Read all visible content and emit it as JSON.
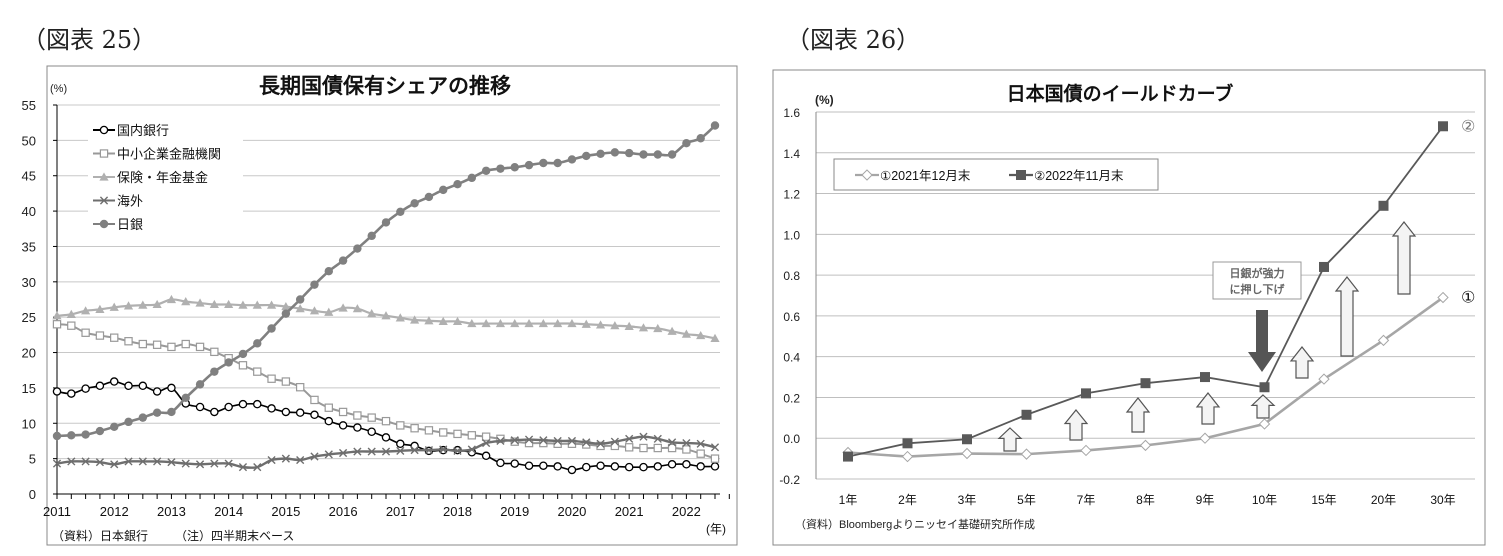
{
  "figure_labels": {
    "left": "（図表 25）",
    "right": "（図表 26）"
  },
  "chart_data": [
    {
      "type": "line",
      "title": "長期国債保有シェアの推移",
      "ylabel": "(%)",
      "xlabel": "(年)",
      "ylim": [
        0,
        55
      ],
      "yticks": [
        0,
        5,
        10,
        15,
        20,
        25,
        30,
        35,
        40,
        45,
        50,
        55
      ],
      "x_tick_labels": [
        "2011",
        "2012",
        "2013",
        "2014",
        "2015",
        "2016",
        "2017",
        "2018",
        "2019",
        "2020",
        "2021",
        "2022"
      ],
      "x_frequency": "quarterly",
      "grid": true,
      "legend": "top-left",
      "source": "（資料）日本銀行",
      "note": "（注）四半期末ベース",
      "series": [
        {
          "name": "国内銀行",
          "color": "#000000",
          "marker": "circle-open",
          "values": [
            14.5,
            14.2,
            14.9,
            15.3,
            15.9,
            15.3,
            15.3,
            14.5,
            15.0,
            12.8,
            12.3,
            11.6,
            12.3,
            12.7,
            12.7,
            12.1,
            11.6,
            11.5,
            11.2,
            10.3,
            9.7,
            9.4,
            8.8,
            8.0,
            7.1,
            6.8,
            6.1,
            6.2,
            6.2,
            5.9,
            5.4,
            4.4,
            4.3,
            4.0,
            4.0,
            3.9,
            3.4,
            3.8,
            4.0,
            3.9,
            3.8,
            3.8,
            3.9,
            4.2,
            4.2,
            3.9,
            3.9
          ]
        },
        {
          "name": "中小企業金融機関",
          "color": "#999999",
          "marker": "square-open",
          "values": [
            24.0,
            23.8,
            22.8,
            22.4,
            22.1,
            21.6,
            21.2,
            21.1,
            20.8,
            21.2,
            20.8,
            20.1,
            19.2,
            18.2,
            17.3,
            16.3,
            15.9,
            15.1,
            13.3,
            12.2,
            11.6,
            11.1,
            10.8,
            10.3,
            9.7,
            9.3,
            9.0,
            8.7,
            8.5,
            8.3,
            8.1,
            7.8,
            7.4,
            7.2,
            7.2,
            7.1,
            7.1,
            7.0,
            6.8,
            6.8,
            6.6,
            6.5,
            6.5,
            6.5,
            6.3,
            5.7,
            5.0
          ]
        },
        {
          "name": "保険・年金基金",
          "color": "#b0b0b0",
          "marker": "triangle",
          "values": [
            25.2,
            25.4,
            25.9,
            26.1,
            26.4,
            26.6,
            26.7,
            26.8,
            27.5,
            27.2,
            27.0,
            26.8,
            26.8,
            26.7,
            26.7,
            26.7,
            26.5,
            26.2,
            25.9,
            25.7,
            26.3,
            26.2,
            25.5,
            25.2,
            24.9,
            24.6,
            24.5,
            24.4,
            24.4,
            24.1,
            24.1,
            24.1,
            24.1,
            24.1,
            24.1,
            24.1,
            24.1,
            24.0,
            23.9,
            23.8,
            23.7,
            23.5,
            23.4,
            23.0,
            22.6,
            22.4,
            22.0
          ]
        },
        {
          "name": "海外",
          "color": "#6e6e6e",
          "marker": "x",
          "values": [
            4.3,
            4.6,
            4.6,
            4.5,
            4.2,
            4.6,
            4.6,
            4.6,
            4.5,
            4.3,
            4.2,
            4.3,
            4.3,
            3.8,
            3.8,
            4.8,
            5.0,
            4.8,
            5.3,
            5.6,
            5.8,
            6.0,
            6.0,
            6.0,
            6.1,
            6.2,
            6.2,
            6.3,
            6.1,
            6.3,
            7.2,
            7.5,
            7.6,
            7.7,
            7.6,
            7.5,
            7.5,
            7.3,
            7.1,
            7.4,
            7.8,
            8.1,
            7.8,
            7.3,
            7.2,
            7.1,
            6.6
          ]
        },
        {
          "name": "日銀",
          "color": "#808080",
          "marker": "circle-filled",
          "values": [
            8.2,
            8.3,
            8.4,
            8.9,
            9.5,
            10.2,
            10.8,
            11.5,
            11.6,
            13.6,
            15.5,
            17.3,
            18.6,
            19.8,
            21.3,
            23.4,
            25.5,
            27.5,
            29.6,
            31.5,
            33.0,
            34.7,
            36.5,
            38.4,
            39.9,
            41.1,
            42.0,
            43.0,
            43.8,
            44.7,
            45.7,
            46.0,
            46.2,
            46.5,
            46.8,
            46.8,
            47.3,
            47.8,
            48.1,
            48.3,
            48.2,
            48.0,
            48.0,
            48.0,
            49.6,
            50.3,
            52.1
          ]
        }
      ]
    },
    {
      "type": "line",
      "title": "日本国債のイールドカーブ",
      "ylabel": "(%)",
      "ylim": [
        -0.2,
        1.6
      ],
      "yticks": [
        "-0.2",
        "0.0",
        "0.2",
        "0.4",
        "0.6",
        "0.8",
        "1.0",
        "1.2",
        "1.4",
        "1.6"
      ],
      "categories": [
        "1年",
        "2年",
        "3年",
        "5年",
        "7年",
        "8年",
        "9年",
        "10年",
        "15年",
        "20年",
        "30年"
      ],
      "grid": true,
      "legend": "top-left",
      "source": "（資料）Bloombergよりニッセイ基礎研究所作成",
      "annotation": "日銀が強力に押し下げ",
      "annotation_lines": [
        "日銀が強力",
        "に押し下げ"
      ],
      "series": [
        {
          "name": "①2021年12月末",
          "end_label": "①",
          "color": "#a6a6a6",
          "marker": "diamond-open",
          "values": [
            -0.07,
            -0.09,
            -0.075,
            -0.078,
            -0.06,
            -0.035,
            0.0,
            0.07,
            0.29,
            0.48,
            0.69
          ]
        },
        {
          "name": "②2022年11月末",
          "end_label": "②",
          "color": "#595959",
          "marker": "square-filled",
          "values": [
            -0.09,
            -0.025,
            -0.005,
            0.115,
            0.22,
            0.27,
            0.3,
            0.25,
            0.84,
            1.14,
            1.53
          ]
        }
      ]
    }
  ]
}
